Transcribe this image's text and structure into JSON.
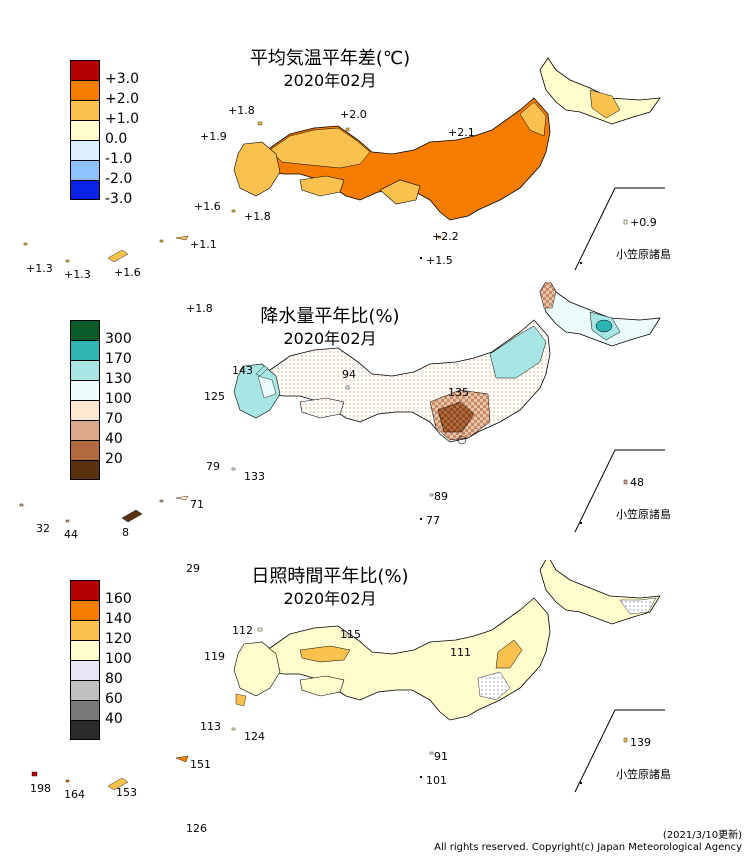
{
  "panels": [
    {
      "title": "平均気温平年差(℃)",
      "period": "2020年02月",
      "legend": [
        {
          "label": "+3.0",
          "color": "#b30000"
        },
        {
          "label": "+2.0",
          "color": "#f47d00"
        },
        {
          "label": "+1.0",
          "color": "#fbc14f"
        },
        {
          "label": "0.0",
          "color": "#fffccd"
        },
        {
          "label": "-1.0",
          "color": "#dbefff"
        },
        {
          "label": "-2.0",
          "color": "#8ec2ff"
        },
        {
          "label": "-3.0",
          "color": "#0a22e6"
        },
        {
          "label": "",
          "color": ""
        }
      ],
      "values": {
        "northwest1": "+1.8",
        "northwest2": "+1.9",
        "sea": "+2.0",
        "northeast": "+2.1",
        "south1": "+1.6",
        "south2": "+1.8",
        "izu": "+2.2",
        "izu2": "+1.5",
        "ogasawara": "+0.9",
        "okinawa1": "+1.3",
        "okinawa2": "+1.3",
        "okinawa3": "+1.6",
        "amami": "+1.1",
        "daito": "+1.8"
      },
      "ogasawara_label": "小笠原諸島"
    },
    {
      "title": "降水量平年比(%)",
      "period": "2020年02月",
      "legend": [
        {
          "label": "300",
          "color": "#0a5a2a"
        },
        {
          "label": "170",
          "color": "#2fb3b3"
        },
        {
          "label": "130",
          "color": "#a8e6e6"
        },
        {
          "label": "100",
          "color": "#ecfcfc"
        },
        {
          "label": "70",
          "color": "#fde9d2"
        },
        {
          "label": "40",
          "color": "#dca88a"
        },
        {
          "label": "20",
          "color": "#b36a3e"
        },
        {
          "label": "",
          "color": "#5a3210"
        }
      ],
      "values": {
        "northwest1": "143",
        "northwest2": "125",
        "sea": "94",
        "northeast": "135",
        "south1": "79",
        "south2": "133",
        "izu": "89",
        "izu2": "77",
        "ogasawara": "48",
        "okinawa1": "32",
        "okinawa2": "44",
        "okinawa3": "8",
        "amami": "71",
        "daito": "29"
      },
      "ogasawara_label": "小笠原諸島"
    },
    {
      "title": "日照時間平年比(%)",
      "period": "2020年02月",
      "legend": [
        {
          "label": "160",
          "color": "#b30000"
        },
        {
          "label": "140",
          "color": "#f47d00"
        },
        {
          "label": "120",
          "color": "#fbc14f"
        },
        {
          "label": "100",
          "color": "#fffccd"
        },
        {
          "label": "80",
          "color": "#e6e6f5"
        },
        {
          "label": "60",
          "color": "#c0c0c0"
        },
        {
          "label": "40",
          "color": "#7a7a7a"
        },
        {
          "label": "",
          "color": "#2a2a2a"
        }
      ],
      "values": {
        "northwest1": "112",
        "northwest2": "119",
        "sea": "115",
        "northeast": "111",
        "south1": "113",
        "south2": "124",
        "izu": "91",
        "izu2": "101",
        "ogasawara": "139",
        "okinawa1": "198",
        "okinawa2": "164",
        "okinawa3": "153",
        "amami": "151",
        "daito": "126"
      },
      "ogasawara_label": "小笠原諸島"
    }
  ],
  "footer": {
    "updated": "(2021/3/10更新)",
    "copyright": "All rights reserved. Copyright(c) Japan Meteorological Agency"
  }
}
